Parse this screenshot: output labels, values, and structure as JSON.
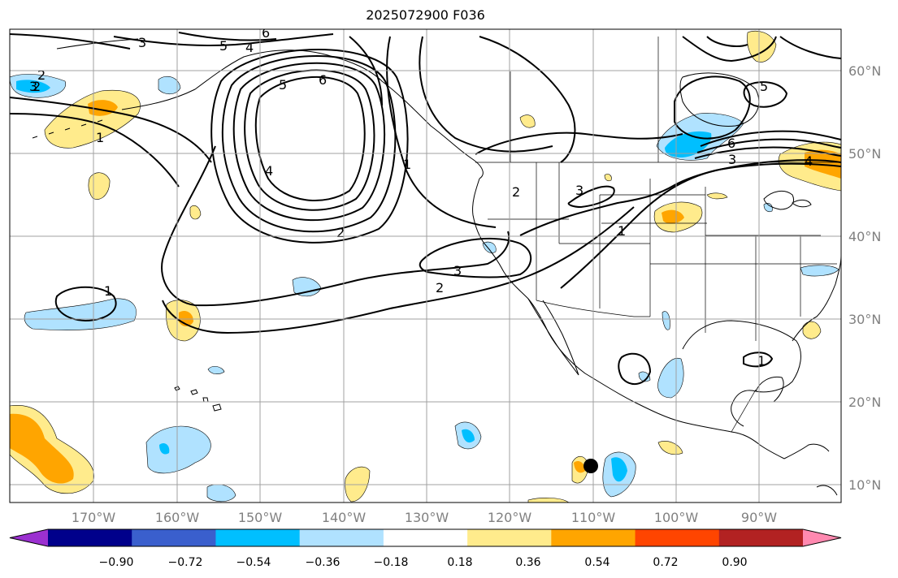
{
  "title": "2025072900 F036",
  "map": {
    "lon_labels": [
      "170°W",
      "160°W",
      "150°W",
      "140°W",
      "130°W",
      "120°W",
      "110°W",
      "100°W",
      "90°W"
    ],
    "lat_labels": [
      "60°N",
      "50°N",
      "40°N",
      "30°N",
      "20°N",
      "10°N"
    ],
    "land_fill": "#ffffff",
    "ocean_fill": "#ffffff",
    "gridline_color": "#a0a0a0",
    "marker": {
      "label": "storm-center-marker",
      "color": "#000000"
    }
  },
  "colorbar": {
    "ticks": [
      "−0.90",
      "−0.72",
      "−0.54",
      "−0.36",
      "−0.18",
      "0.18",
      "0.36",
      "0.54",
      "0.72",
      "0.90"
    ],
    "colors": [
      "#9b30d0",
      "#00008b",
      "#3a5fcd",
      "#00bfff",
      "#b0e2ff",
      "#ffffff",
      "#ffeb8c",
      "#ffa500",
      "#ff4500",
      "#b22222",
      "#ff89b0"
    ],
    "extend": "both"
  },
  "contours": {
    "color": "#000000",
    "labels": [
      "6",
      "5",
      "4",
      "3",
      "2",
      "6",
      "5",
      "4",
      "1",
      "2",
      "3",
      "2",
      "3",
      "2",
      "1",
      "1",
      "2",
      "3",
      "1",
      "5",
      "6",
      "3",
      "4",
      "1"
    ]
  }
}
